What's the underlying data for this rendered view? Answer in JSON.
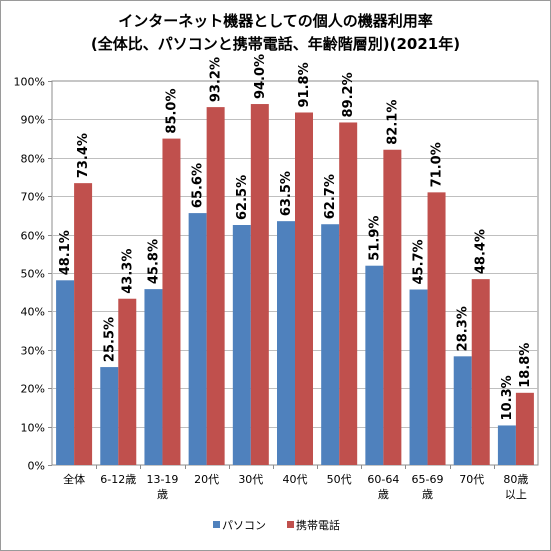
{
  "chart_data": {
    "type": "bar",
    "title": "インターネット機器としての個人の機器利用率",
    "subtitle": "(全体比、パソコンと携帯電話、年齢階層別)(2021年)",
    "xlabel": "",
    "ylabel": "",
    "ylim": [
      0,
      100
    ],
    "yticks": [
      "0%",
      "10%",
      "20%",
      "30%",
      "40%",
      "50%",
      "60%",
      "70%",
      "80%",
      "90%",
      "100%"
    ],
    "categories": [
      [
        "全体"
      ],
      [
        "6-12歳"
      ],
      [
        "13-19",
        "歳"
      ],
      [
        "20代"
      ],
      [
        "30代"
      ],
      [
        "40代"
      ],
      [
        "50代"
      ],
      [
        "60-64",
        "歳"
      ],
      [
        "65-69",
        "歳"
      ],
      [
        "70代"
      ],
      [
        "80歳",
        "以上"
      ]
    ],
    "series": [
      {
        "name": "パソコン",
        "color": "#4f81bd",
        "values": [
          48.1,
          25.5,
          45.8,
          65.6,
          62.5,
          63.5,
          62.7,
          51.9,
          45.7,
          28.3,
          10.3
        ],
        "labels": [
          "48.1%",
          "25.5%",
          "45.8%",
          "65.6%",
          "62.5%",
          "63.5%",
          "62.7%",
          "51.9%",
          "45.7%",
          "28.3%",
          "10.3%"
        ]
      },
      {
        "name": "携帯電話",
        "color": "#c0504d",
        "values": [
          73.4,
          43.3,
          85.0,
          93.2,
          94.0,
          91.8,
          89.2,
          82.1,
          71.0,
          48.4,
          18.8
        ],
        "labels": [
          "73.4%",
          "43.3%",
          "85.0%",
          "93.2%",
          "94.0%",
          "91.8%",
          "89.2%",
          "82.1%",
          "71.0%",
          "48.4%",
          "18.8%"
        ]
      }
    ],
    "grid": true,
    "legend": "bottom"
  }
}
